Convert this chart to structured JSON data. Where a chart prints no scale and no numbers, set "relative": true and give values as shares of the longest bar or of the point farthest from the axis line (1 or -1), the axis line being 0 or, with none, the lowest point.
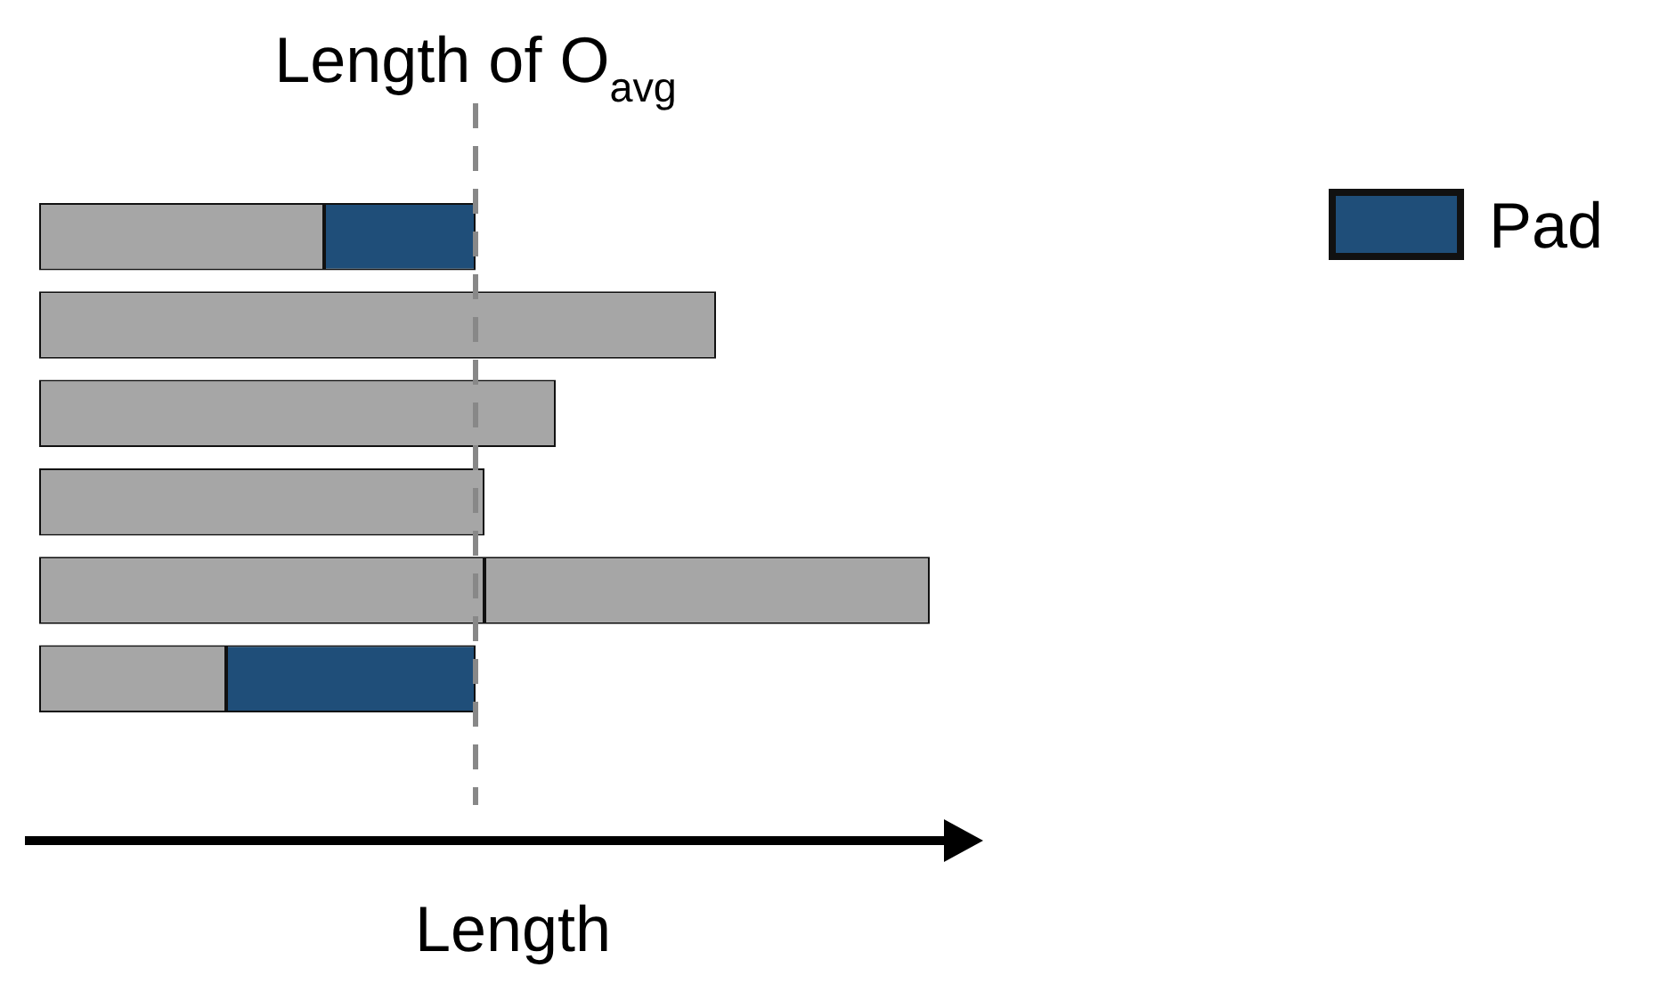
{
  "chart_data": {
    "type": "bar",
    "orientation": "horizontal",
    "stacked": true,
    "relative": true,
    "legend": "top right",
    "xlabel": "Length",
    "categories": [
      null,
      null,
      null,
      null,
      null,
      null
    ],
    "series": [
      {
        "color": "#a6a6a6",
        "values": [
          0.32,
          0.76,
          0.58,
          0.5,
          0.5,
          0.21
        ]
      },
      {
        "name": "Pad",
        "color": "#1f4e79",
        "values": [
          0.17,
          null,
          null,
          null,
          null,
          0.28
        ]
      },
      {
        "color": "#a6a6a6",
        "values": [
          null,
          null,
          null,
          null,
          0.5,
          null
        ]
      }
    ],
    "ref_lines": [
      {
        "axis": "x",
        "value": 0.49,
        "label": "Length of O$_{avg}$",
        "color": "#888888",
        "line_style": "dashed"
      }
    ]
  }
}
